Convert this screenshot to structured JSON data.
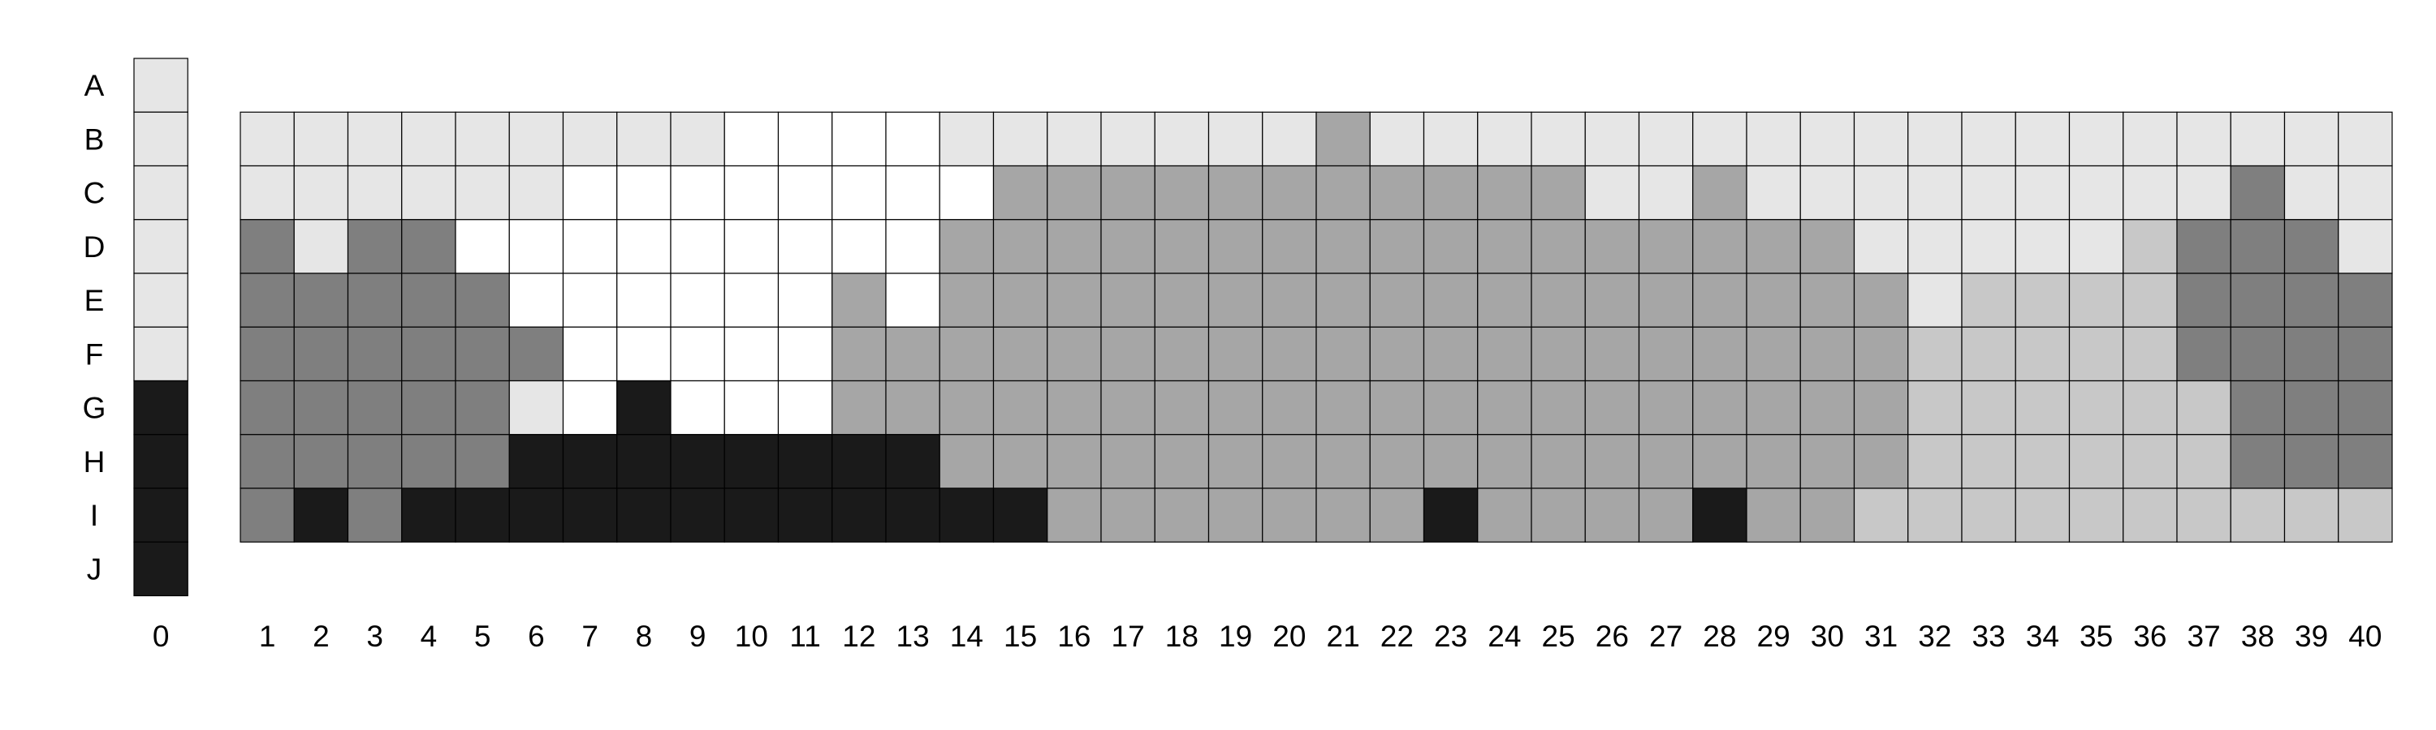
{
  "chart_data": {
    "type": "heatmap",
    "row_labels": [
      "A",
      "B",
      "C",
      "D",
      "E",
      "F",
      "G",
      "H",
      "I",
      "J"
    ],
    "column_labels": [
      "0",
      "1",
      "2",
      "3",
      "4",
      "5",
      "6",
      "7",
      "8",
      "9",
      "10",
      "11",
      "12",
      "13",
      "14",
      "15",
      "16",
      "17",
      "18",
      "19",
      "20",
      "21",
      "22",
      "23",
      "24",
      "25",
      "26",
      "27",
      "28",
      "29",
      "30",
      "31",
      "32",
      "33",
      "34",
      "35",
      "36",
      "37",
      "38",
      "39",
      "40"
    ],
    "palette": {
      "0": "#ffffff",
      "1": "#e6e6e6",
      "2": "#c8c8c8",
      "3": "#a6a6a6",
      "4": "#7f7f7f",
      "5": "#1a1a1a"
    },
    "reference_column": {
      "column": "0",
      "levels": [
        1,
        1,
        1,
        1,
        1,
        1,
        5,
        5,
        5,
        5
      ]
    },
    "grid_rows": [
      "B",
      "C",
      "D",
      "E",
      "F",
      "G",
      "H",
      "I"
    ],
    "grid_levels": [
      [
        1,
        1,
        1,
        1,
        1,
        1,
        1,
        1,
        1,
        0,
        0,
        0,
        0,
        1,
        1,
        1,
        1,
        1,
        1,
        1,
        3,
        1,
        1,
        1,
        1,
        1,
        1,
        1,
        1,
        1,
        1,
        1,
        1,
        1,
        1,
        1,
        1,
        1,
        1,
        1
      ],
      [
        1,
        1,
        1,
        1,
        1,
        1,
        0,
        0,
        0,
        0,
        0,
        0,
        0,
        0,
        3,
        3,
        3,
        3,
        3,
        3,
        3,
        3,
        3,
        3,
        3,
        1,
        1,
        3,
        1,
        1,
        1,
        1,
        1,
        1,
        1,
        1,
        1,
        4,
        1,
        1
      ],
      [
        4,
        1,
        4,
        4,
        0,
        0,
        0,
        0,
        0,
        0,
        0,
        0,
        0,
        3,
        3,
        3,
        3,
        3,
        3,
        3,
        3,
        3,
        3,
        3,
        3,
        3,
        3,
        3,
        3,
        3,
        1,
        1,
        1,
        1,
        1,
        2,
        4,
        4,
        4,
        1
      ],
      [
        4,
        4,
        4,
        4,
        4,
        0,
        0,
        0,
        0,
        0,
        0,
        3,
        0,
        3,
        3,
        3,
        3,
        3,
        3,
        3,
        3,
        3,
        3,
        3,
        3,
        3,
        3,
        3,
        3,
        3,
        3,
        1,
        2,
        2,
        2,
        2,
        4,
        4,
        4,
        4
      ],
      [
        4,
        4,
        4,
        4,
        4,
        4,
        0,
        0,
        0,
        0,
        0,
        3,
        3,
        3,
        3,
        3,
        3,
        3,
        3,
        3,
        3,
        3,
        3,
        3,
        3,
        3,
        3,
        3,
        3,
        3,
        3,
        2,
        2,
        2,
        2,
        2,
        4,
        4,
        4,
        4
      ],
      [
        4,
        4,
        4,
        4,
        4,
        1,
        0,
        5,
        0,
        0,
        0,
        3,
        3,
        3,
        3,
        3,
        3,
        3,
        3,
        3,
        3,
        3,
        3,
        3,
        3,
        3,
        3,
        3,
        3,
        3,
        3,
        2,
        2,
        2,
        2,
        2,
        2,
        4,
        4,
        4
      ],
      [
        4,
        4,
        4,
        4,
        4,
        5,
        5,
        5,
        5,
        5,
        5,
        5,
        5,
        3,
        3,
        3,
        3,
        3,
        3,
        3,
        3,
        3,
        3,
        3,
        3,
        3,
        3,
        3,
        3,
        3,
        3,
        2,
        2,
        2,
        2,
        2,
        2,
        4,
        4,
        4
      ],
      [
        4,
        5,
        4,
        5,
        5,
        5,
        5,
        5,
        5,
        5,
        5,
        5,
        5,
        5,
        5,
        3,
        3,
        3,
        3,
        3,
        3,
        3,
        5,
        3,
        3,
        3,
        3,
        5,
        3,
        3,
        2,
        2,
        2,
        2,
        2,
        2,
        2,
        2,
        2,
        2
      ]
    ]
  }
}
